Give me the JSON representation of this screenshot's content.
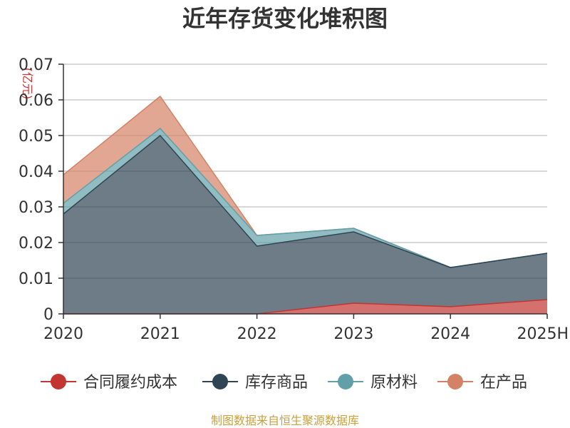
{
  "chart_data": {
    "type": "area",
    "stacked": true,
    "title": "近年存货变化堆积图",
    "ylabel": "(亿元)",
    "xlabel": "",
    "categories": [
      "2020",
      "2021",
      "2022",
      "2023",
      "2024",
      "2025H"
    ],
    "y_ticks": [
      "0",
      "0.01",
      "0.02",
      "0.03",
      "0.04",
      "0.05",
      "0.06",
      "0.07"
    ],
    "ylim": [
      0,
      0.07
    ],
    "grid": true,
    "legend_position": "bottom",
    "series": [
      {
        "name": "合同履约成本",
        "color": "#c23531",
        "values": [
          0,
          0,
          0,
          0.003,
          0.002,
          0.004
        ]
      },
      {
        "name": "库存商品",
        "color": "#2f4554",
        "values": [
          0.028,
          0.05,
          0.019,
          0.02,
          0.011,
          0.013
        ]
      },
      {
        "name": "原材料",
        "color": "#61a0a8",
        "values": [
          0.003,
          0.002,
          0.003,
          0.001,
          0,
          0
        ]
      },
      {
        "name": "在产品",
        "color": "#d48265",
        "values": [
          0.008,
          0.009,
          0,
          0,
          0,
          0
        ]
      }
    ],
    "source": "制图数据来自恒生聚源数据库"
  }
}
